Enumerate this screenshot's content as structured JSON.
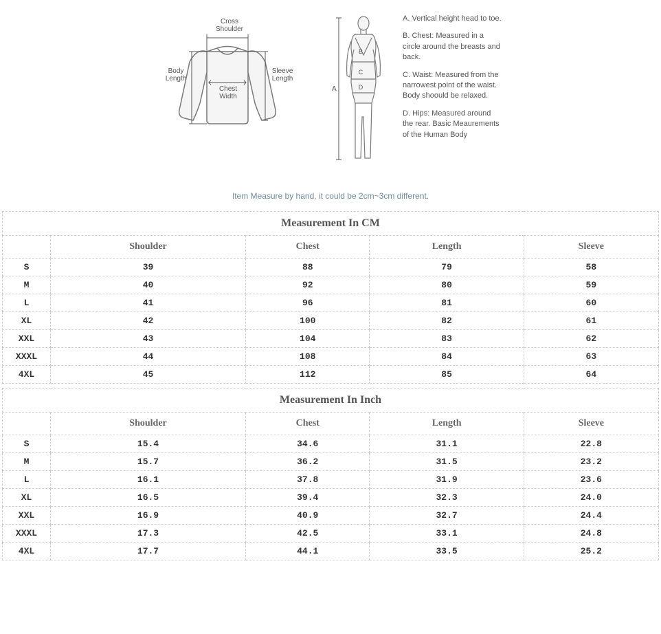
{
  "garment_labels": {
    "cross_shoulder": "Cross\nShoulder",
    "body_length": "Body\nLength",
    "chest_width": "Chest\nWidth",
    "sleeve_length": "Sleeve\nLength"
  },
  "body_measurements": {
    "A": {
      "letter": "A.",
      "text": "Vertical height head to toe."
    },
    "B": {
      "letter": "B.",
      "text": "Chest: Measured in a circle around the breasts and back."
    },
    "C": {
      "letter": "C.",
      "text": "Waist: Measured from the narrowest point of the waist. Body shoould be relaxed."
    },
    "D": {
      "letter": "D.",
      "text": "Hips: Measured around the rear. Basic Meaurements of the Human Body"
    }
  },
  "body_markers": {
    "A": "A",
    "B": "B",
    "C": "C",
    "D": "D"
  },
  "note": "Item Measure by hand, it could be 2cm~3cm different.",
  "tables": {
    "cm": {
      "title": "Measurement In CM",
      "columns": [
        "",
        "Shoulder",
        "Chest",
        "Length",
        "Sleeve"
      ],
      "rows": [
        {
          "size": "S",
          "values": [
            "39",
            "88",
            "79",
            "58"
          ]
        },
        {
          "size": "M",
          "values": [
            "40",
            "92",
            "80",
            "59"
          ]
        },
        {
          "size": "L",
          "values": [
            "41",
            "96",
            "81",
            "60"
          ]
        },
        {
          "size": "XL",
          "values": [
            "42",
            "100",
            "82",
            "61"
          ]
        },
        {
          "size": "XXL",
          "values": [
            "43",
            "104",
            "83",
            "62"
          ]
        },
        {
          "size": "XXXL",
          "values": [
            "44",
            "108",
            "84",
            "63"
          ]
        },
        {
          "size": "4XL",
          "values": [
            "45",
            "112",
            "85",
            "64"
          ]
        }
      ]
    },
    "inch": {
      "title": "Measurement In Inch",
      "columns": [
        "",
        "Shoulder",
        "Chest",
        "Length",
        "Sleeve"
      ],
      "rows": [
        {
          "size": "S",
          "values": [
            "15.4",
            "34.6",
            "31.1",
            "22.8"
          ]
        },
        {
          "size": "M",
          "values": [
            "15.7",
            "36.2",
            "31.5",
            "23.2"
          ]
        },
        {
          "size": "L",
          "values": [
            "16.1",
            "37.8",
            "31.9",
            "23.6"
          ]
        },
        {
          "size": "XL",
          "values": [
            "16.5",
            "39.4",
            "32.3",
            "24.0"
          ]
        },
        {
          "size": "XXL",
          "values": [
            "16.9",
            "40.9",
            "32.7",
            "24.4"
          ]
        },
        {
          "size": "XXXL",
          "values": [
            "17.3",
            "42.5",
            "33.1",
            "24.8"
          ]
        },
        {
          "size": "4XL",
          "values": [
            "17.7",
            "44.1",
            "33.5",
            "25.2"
          ]
        }
      ]
    }
  },
  "style": {
    "border_color": "#d0d0d0",
    "diagram_stroke": "#7a7a7a",
    "note_color": "#6b8ca3"
  }
}
